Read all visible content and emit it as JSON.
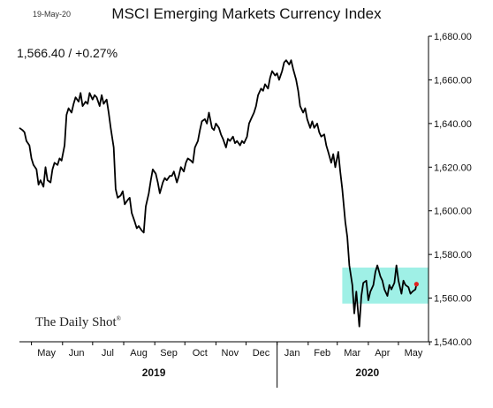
{
  "header": {
    "date_stamp": "19-May-20",
    "title": "MSCI Emerging Markets Currency Index",
    "value_readout": "1,566.40  /  +0.27%"
  },
  "watermark": {
    "text": "The Daily Shot",
    "mark": "®"
  },
  "colors": {
    "line": "#000000",
    "highlight": "#9ff0e6",
    "last_point": "#e0201e"
  },
  "chart_data": {
    "type": "line",
    "title": "MSCI Emerging Markets Currency Index",
    "xlabel": "",
    "ylabel": "",
    "ylim": [
      1540,
      1680
    ],
    "y_ticks": [
      1540,
      1560,
      1580,
      1600,
      1620,
      1640,
      1660,
      1680
    ],
    "y_tick_labels": [
      "1,540.00",
      "1,560.00",
      "1,580.00",
      "1,600.00",
      "1,620.00",
      "1,640.00",
      "1,660.00",
      "1,680.00"
    ],
    "y_axis_side": "right",
    "x_range": [
      "2019-04-19",
      "2020-05-31"
    ],
    "month_labels": [
      {
        "label": "May",
        "date": "2019-05-16"
      },
      {
        "label": "Jun",
        "date": "2019-06-15"
      },
      {
        "label": "Jul",
        "date": "2019-07-16"
      },
      {
        "label": "Aug",
        "date": "2019-08-16"
      },
      {
        "label": "Sep",
        "date": "2019-09-15"
      },
      {
        "label": "Oct",
        "date": "2019-10-16"
      },
      {
        "label": "Nov",
        "date": "2019-11-15"
      },
      {
        "label": "Dec",
        "date": "2019-12-16"
      },
      {
        "label": "Jan",
        "date": "2020-01-16"
      },
      {
        "label": "Feb",
        "date": "2020-02-15"
      },
      {
        "label": "Mar",
        "date": "2020-03-16"
      },
      {
        "label": "Apr",
        "date": "2020-04-15"
      },
      {
        "label": "May",
        "date": "2020-05-16"
      }
    ],
    "year_labels": [
      {
        "label": "2019",
        "date": "2019-08-31"
      },
      {
        "label": "2020",
        "date": "2020-03-31"
      }
    ],
    "year_divider_date": "2020-01-01",
    "grid": false,
    "legend": "none",
    "highlight_box": {
      "x0": "2020-03-06",
      "x1": "2020-05-31",
      "y0": 1557.5,
      "y1": 1574
    },
    "last_point": {
      "date": "2020-05-19",
      "value": 1566.4
    },
    "series": [
      {
        "points": [
          [
            "2019-04-19",
            1638
          ],
          [
            "2019-04-22",
            1637
          ],
          [
            "2019-04-24",
            1636
          ],
          [
            "2019-04-26",
            1632
          ],
          [
            "2019-04-29",
            1630
          ],
          [
            "2019-05-01",
            1624
          ],
          [
            "2019-05-03",
            1621
          ],
          [
            "2019-05-06",
            1619
          ],
          [
            "2019-05-08",
            1612
          ],
          [
            "2019-05-10",
            1614
          ],
          [
            "2019-05-13",
            1611
          ],
          [
            "2019-05-15",
            1620
          ],
          [
            "2019-05-17",
            1614
          ],
          [
            "2019-05-20",
            1613
          ],
          [
            "2019-05-22",
            1619
          ],
          [
            "2019-05-24",
            1622
          ],
          [
            "2019-05-27",
            1621
          ],
          [
            "2019-05-29",
            1624
          ],
          [
            "2019-05-31",
            1623
          ],
          [
            "2019-06-03",
            1630
          ],
          [
            "2019-06-05",
            1644
          ],
          [
            "2019-06-07",
            1647
          ],
          [
            "2019-06-10",
            1645
          ],
          [
            "2019-06-12",
            1649
          ],
          [
            "2019-06-14",
            1652
          ],
          [
            "2019-06-17",
            1650
          ],
          [
            "2019-06-19",
            1654
          ],
          [
            "2019-06-21",
            1648
          ],
          [
            "2019-06-24",
            1650
          ],
          [
            "2019-06-26",
            1649
          ],
          [
            "2019-06-28",
            1654
          ],
          [
            "2019-07-01",
            1651
          ],
          [
            "2019-07-03",
            1653
          ],
          [
            "2019-07-05",
            1652
          ],
          [
            "2019-07-08",
            1648
          ],
          [
            "2019-07-10",
            1653
          ],
          [
            "2019-07-12",
            1649
          ],
          [
            "2019-07-15",
            1651
          ],
          [
            "2019-07-17",
            1645
          ],
          [
            "2019-07-19",
            1638
          ],
          [
            "2019-07-22",
            1629
          ],
          [
            "2019-07-24",
            1610
          ],
          [
            "2019-07-26",
            1606
          ],
          [
            "2019-07-29",
            1607
          ],
          [
            "2019-07-31",
            1609
          ],
          [
            "2019-08-02",
            1603
          ],
          [
            "2019-08-05",
            1605
          ],
          [
            "2019-08-07",
            1606
          ],
          [
            "2019-08-09",
            1599
          ],
          [
            "2019-08-12",
            1595
          ],
          [
            "2019-08-14",
            1592
          ],
          [
            "2019-08-16",
            1593
          ],
          [
            "2019-08-19",
            1591
          ],
          [
            "2019-08-21",
            1590
          ],
          [
            "2019-08-23",
            1602
          ],
          [
            "2019-08-26",
            1608
          ],
          [
            "2019-08-28",
            1614
          ],
          [
            "2019-08-30",
            1619
          ],
          [
            "2019-09-02",
            1617
          ],
          [
            "2019-09-04",
            1613
          ],
          [
            "2019-09-06",
            1608
          ],
          [
            "2019-09-09",
            1613
          ],
          [
            "2019-09-11",
            1615
          ],
          [
            "2019-09-13",
            1614
          ],
          [
            "2019-09-16",
            1616
          ],
          [
            "2019-09-18",
            1616
          ],
          [
            "2019-09-20",
            1618
          ],
          [
            "2019-09-23",
            1613
          ],
          [
            "2019-09-25",
            1616
          ],
          [
            "2019-09-27",
            1620
          ],
          [
            "2019-09-30",
            1618
          ],
          [
            "2019-10-02",
            1622
          ],
          [
            "2019-10-04",
            1624
          ],
          [
            "2019-10-07",
            1623
          ],
          [
            "2019-10-09",
            1622
          ],
          [
            "2019-10-11",
            1629
          ],
          [
            "2019-10-14",
            1632
          ],
          [
            "2019-10-16",
            1637
          ],
          [
            "2019-10-18",
            1641
          ],
          [
            "2019-10-21",
            1642
          ],
          [
            "2019-10-23",
            1640
          ],
          [
            "2019-10-25",
            1645
          ],
          [
            "2019-10-28",
            1638
          ],
          [
            "2019-10-30",
            1637
          ],
          [
            "2019-11-01",
            1640
          ],
          [
            "2019-11-04",
            1638
          ],
          [
            "2019-11-06",
            1635
          ],
          [
            "2019-11-08",
            1633
          ],
          [
            "2019-11-11",
            1629
          ],
          [
            "2019-11-13",
            1633
          ],
          [
            "2019-11-15",
            1632
          ],
          [
            "2019-11-18",
            1634
          ],
          [
            "2019-11-20",
            1631
          ],
          [
            "2019-11-22",
            1632
          ],
          [
            "2019-11-25",
            1630
          ],
          [
            "2019-11-27",
            1632
          ],
          [
            "2019-11-29",
            1631
          ],
          [
            "2019-12-02",
            1634
          ],
          [
            "2019-12-04",
            1640
          ],
          [
            "2019-12-06",
            1642
          ],
          [
            "2019-12-09",
            1645
          ],
          [
            "2019-12-11",
            1648
          ],
          [
            "2019-12-13",
            1653
          ],
          [
            "2019-12-16",
            1656
          ],
          [
            "2019-12-18",
            1655
          ],
          [
            "2019-12-20",
            1658
          ],
          [
            "2019-12-23",
            1656
          ],
          [
            "2019-12-25",
            1661
          ],
          [
            "2019-12-27",
            1664
          ],
          [
            "2019-12-30",
            1662
          ],
          [
            "2020-01-01",
            1663
          ],
          [
            "2020-01-03",
            1660
          ],
          [
            "2020-01-06",
            1664
          ],
          [
            "2020-01-08",
            1668
          ],
          [
            "2020-01-10",
            1669
          ],
          [
            "2020-01-13",
            1667
          ],
          [
            "2020-01-15",
            1669
          ],
          [
            "2020-01-17",
            1665
          ],
          [
            "2020-01-20",
            1660
          ],
          [
            "2020-01-22",
            1655
          ],
          [
            "2020-01-24",
            1648
          ],
          [
            "2020-01-27",
            1645
          ],
          [
            "2020-01-29",
            1647
          ],
          [
            "2020-01-31",
            1642
          ],
          [
            "2020-02-03",
            1638
          ],
          [
            "2020-02-05",
            1641
          ],
          [
            "2020-02-07",
            1638
          ],
          [
            "2020-02-10",
            1640
          ],
          [
            "2020-02-12",
            1636
          ],
          [
            "2020-02-14",
            1634
          ],
          [
            "2020-02-17",
            1635
          ],
          [
            "2020-02-19",
            1630
          ],
          [
            "2020-02-21",
            1627
          ],
          [
            "2020-02-24",
            1622
          ],
          [
            "2020-02-26",
            1626
          ],
          [
            "2020-02-28",
            1620
          ],
          [
            "2020-03-02",
            1627
          ],
          [
            "2020-03-04",
            1618
          ],
          [
            "2020-03-06",
            1610
          ],
          [
            "2020-03-09",
            1595
          ],
          [
            "2020-03-11",
            1588
          ],
          [
            "2020-03-13",
            1575
          ],
          [
            "2020-03-16",
            1566
          ],
          [
            "2020-03-18",
            1553
          ],
          [
            "2020-03-20",
            1563
          ],
          [
            "2020-03-23",
            1547
          ],
          [
            "2020-03-25",
            1561
          ],
          [
            "2020-03-27",
            1567
          ],
          [
            "2020-03-30",
            1568
          ],
          [
            "2020-04-01",
            1559
          ],
          [
            "2020-04-03",
            1563
          ],
          [
            "2020-04-06",
            1566
          ],
          [
            "2020-04-08",
            1572
          ],
          [
            "2020-04-10",
            1575
          ],
          [
            "2020-04-13",
            1570
          ],
          [
            "2020-04-15",
            1568
          ],
          [
            "2020-04-17",
            1564
          ],
          [
            "2020-04-20",
            1561
          ],
          [
            "2020-04-22",
            1566
          ],
          [
            "2020-04-24",
            1564
          ],
          [
            "2020-04-27",
            1567
          ],
          [
            "2020-04-29",
            1575
          ],
          [
            "2020-05-01",
            1568
          ],
          [
            "2020-05-04",
            1562
          ],
          [
            "2020-05-06",
            1568
          ],
          [
            "2020-05-08",
            1566
          ],
          [
            "2020-05-11",
            1565
          ],
          [
            "2020-05-13",
            1562
          ],
          [
            "2020-05-15",
            1563
          ],
          [
            "2020-05-18",
            1564
          ],
          [
            "2020-05-19",
            1566.4
          ]
        ]
      }
    ]
  }
}
